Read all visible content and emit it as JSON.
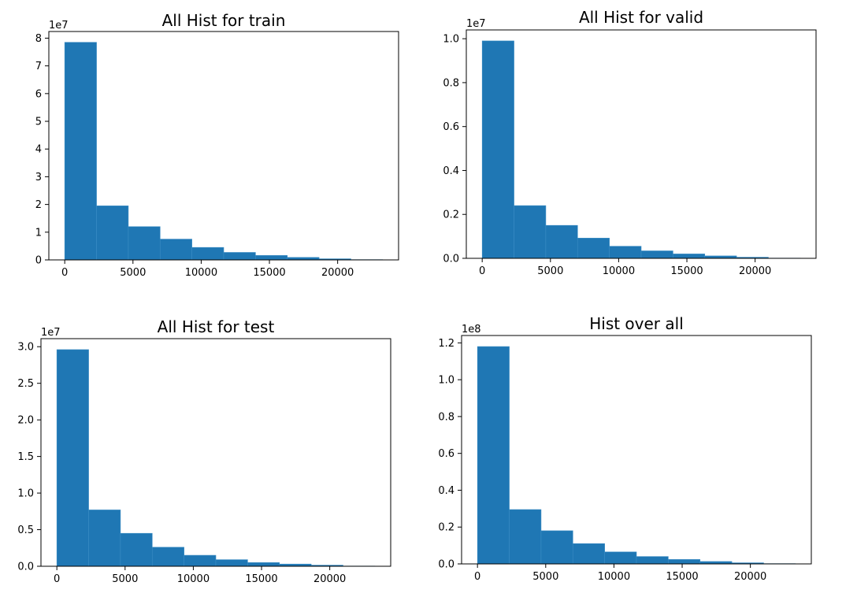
{
  "colors": {
    "bar": "#1f77b4",
    "bar_edge": "#3a8cc4",
    "axis": "#000000",
    "background": "#ffffff"
  },
  "chart_data": [
    {
      "type": "bar",
      "title": "All Hist for train",
      "multiplier": "1e7",
      "bin_edges": [
        0,
        2330,
        4660,
        6990,
        9320,
        11650,
        13980,
        16310,
        18640,
        20970,
        23300
      ],
      "values": [
        7.85,
        1.95,
        1.2,
        0.75,
        0.45,
        0.27,
        0.16,
        0.09,
        0.04,
        0.01
      ],
      "xlim": [
        -1165,
        24465
      ],
      "ylim": [
        0,
        8.24
      ],
      "xticks": [
        0,
        5000,
        10000,
        15000,
        20000
      ],
      "xtick_labels": [
        "0",
        "5000",
        "10000",
        "15000",
        "20000"
      ],
      "yticks": [
        0,
        1,
        2,
        3,
        4,
        5,
        6,
        7,
        8
      ],
      "ytick_labels": [
        "0",
        "1",
        "2",
        "3",
        "4",
        "5",
        "6",
        "7",
        "8"
      ]
    },
    {
      "type": "bar",
      "title": "All Hist for valid",
      "multiplier": "1e7",
      "bin_edges": [
        0,
        2330,
        4660,
        6990,
        9320,
        11650,
        13980,
        16310,
        18640,
        20970,
        23300
      ],
      "values": [
        0.99,
        0.24,
        0.15,
        0.092,
        0.055,
        0.034,
        0.02,
        0.011,
        0.005,
        0.001
      ],
      "xlim": [
        -1165,
        24465
      ],
      "ylim": [
        0,
        1.04
      ],
      "xticks": [
        0,
        5000,
        10000,
        15000,
        20000
      ],
      "xtick_labels": [
        "0",
        "5000",
        "10000",
        "15000",
        "20000"
      ],
      "yticks": [
        0,
        0.2,
        0.4,
        0.6,
        0.8,
        1.0
      ],
      "ytick_labels": [
        "0.0",
        "0.2",
        "0.4",
        "0.6",
        "0.8",
        "1.0"
      ]
    },
    {
      "type": "bar",
      "title": "All Hist for test",
      "multiplier": "1e7",
      "bin_edges": [
        0,
        2330,
        4660,
        6990,
        9320,
        11650,
        13980,
        16310,
        18640,
        20970,
        23300
      ],
      "values": [
        2.96,
        0.77,
        0.45,
        0.26,
        0.15,
        0.09,
        0.05,
        0.03,
        0.015,
        0.003
      ],
      "xlim": [
        -1165,
        24465
      ],
      "ylim": [
        0,
        3.11
      ],
      "xticks": [
        0,
        5000,
        10000,
        15000,
        20000
      ],
      "xtick_labels": [
        "0",
        "5000",
        "10000",
        "15000",
        "20000"
      ],
      "yticks": [
        0,
        0.5,
        1.0,
        1.5,
        2.0,
        2.5,
        3.0
      ],
      "ytick_labels": [
        "0.0",
        "0.5",
        "1.0",
        "1.5",
        "2.0",
        "2.5",
        "3.0"
      ]
    },
    {
      "type": "bar",
      "title": "Hist over all",
      "multiplier": "1e8",
      "bin_edges": [
        0,
        2330,
        4660,
        6990,
        9320,
        11650,
        13980,
        16310,
        18640,
        20970,
        23300
      ],
      "values": [
        1.18,
        0.295,
        0.18,
        0.11,
        0.065,
        0.04,
        0.024,
        0.013,
        0.006,
        0.0015
      ],
      "xlim": [
        -1165,
        24465
      ],
      "ylim": [
        0,
        1.24
      ],
      "xticks": [
        0,
        5000,
        10000,
        15000,
        20000
      ],
      "xtick_labels": [
        "0",
        "5000",
        "10000",
        "15000",
        "20000"
      ],
      "yticks": [
        0,
        0.2,
        0.4,
        0.6,
        0.8,
        1.0,
        1.2
      ],
      "ytick_labels": [
        "0.0",
        "0.2",
        "0.4",
        "0.6",
        "0.8",
        "1.0",
        "1.2"
      ]
    }
  ]
}
